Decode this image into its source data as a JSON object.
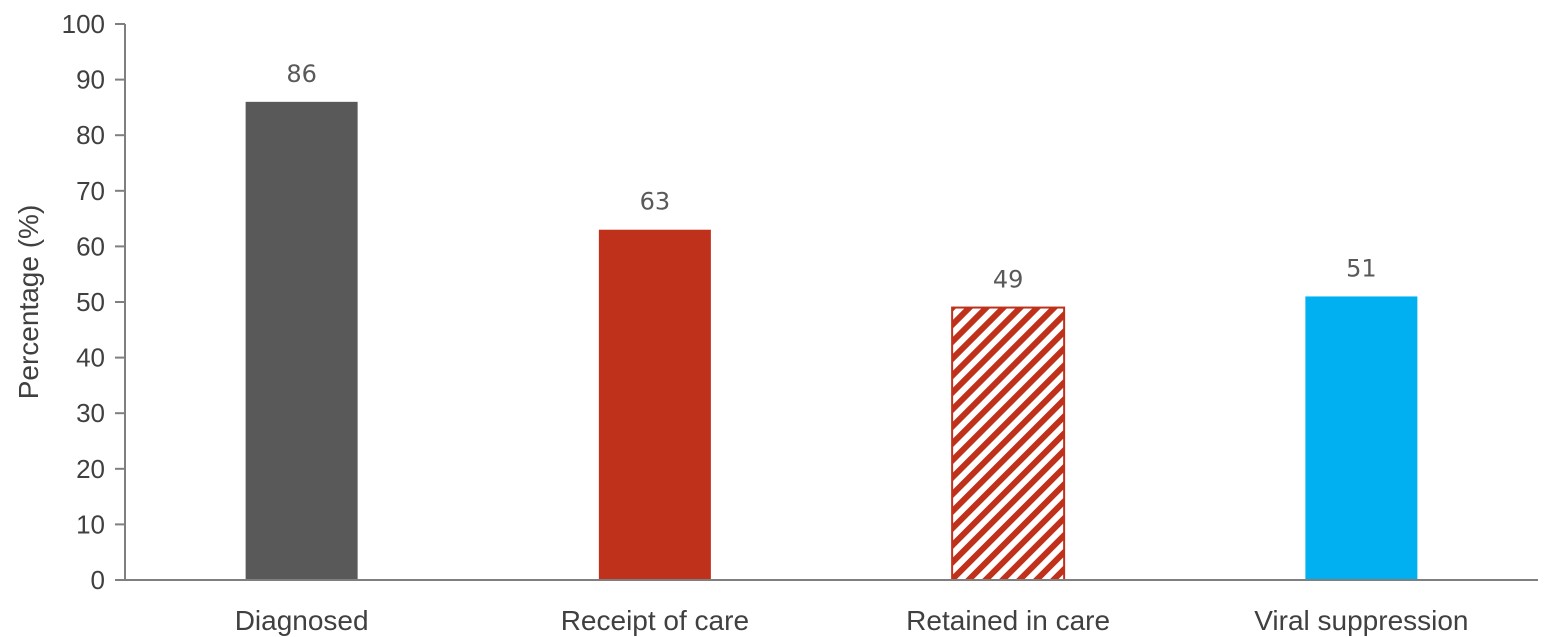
{
  "chart_data": {
    "type": "bar",
    "categories": [
      "Diagnosed",
      "Receipt of care",
      "Retained in care",
      "Viral suppression"
    ],
    "values": [
      86,
      63,
      49,
      51
    ],
    "data_labels": [
      "86",
      "63",
      "49",
      "51"
    ],
    "title": "",
    "xlabel": "",
    "ylabel": "Percentage (%)",
    "ylim": [
      0,
      100
    ],
    "yticks": [
      0,
      10,
      20,
      30,
      40,
      50,
      60,
      70,
      80,
      90,
      100
    ],
    "grid": false,
    "legend": "none",
    "bar_styles": [
      {
        "fill": "#595959",
        "pattern": "solid"
      },
      {
        "fill": "#BF311A",
        "pattern": "solid"
      },
      {
        "fill": "#BF311A",
        "pattern": "diagonal-stripes"
      },
      {
        "fill": "#00B0F0",
        "pattern": "solid"
      }
    ]
  }
}
